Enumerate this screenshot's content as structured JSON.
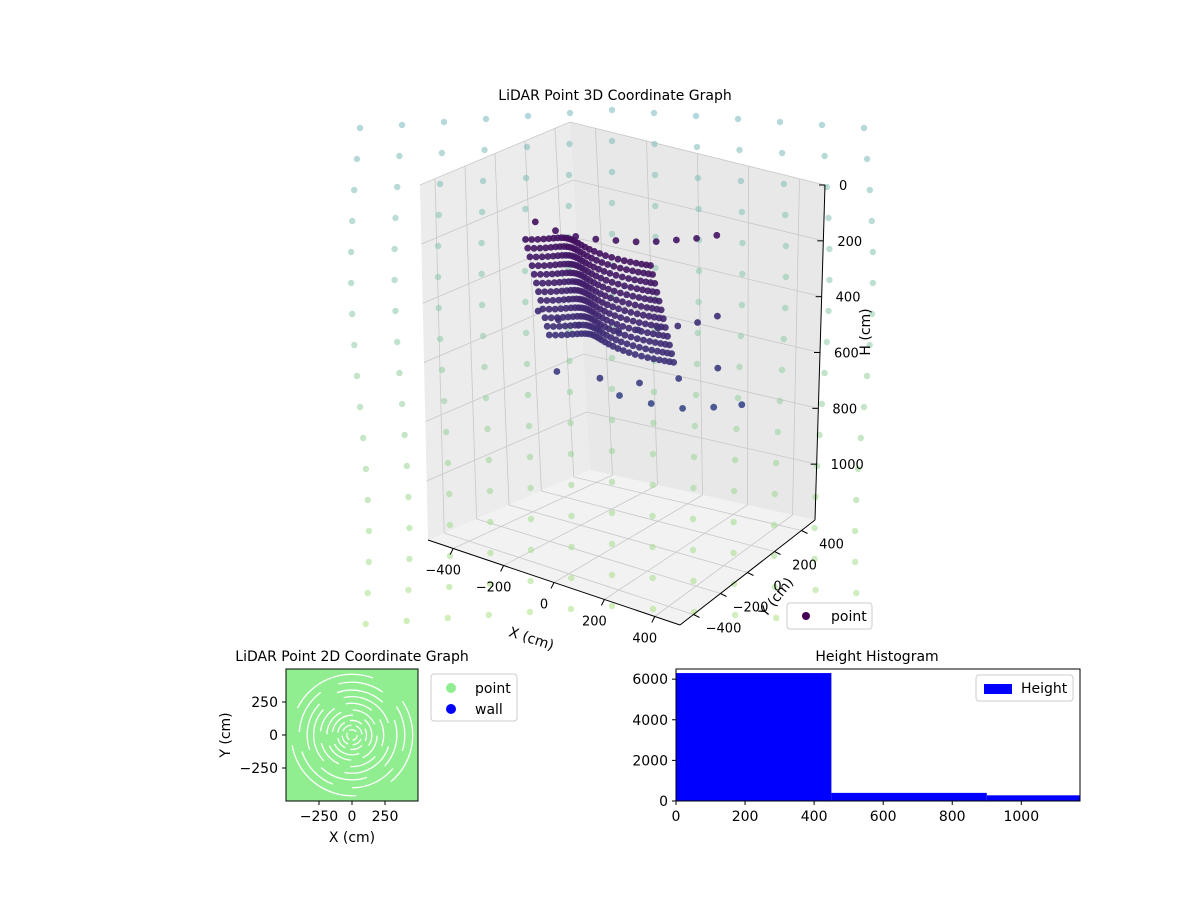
{
  "chart_data": [
    {
      "type": "scatter",
      "title": "LiDAR Point 3D Coordinate Graph",
      "xlabel": "X (cm)",
      "ylabel": "Y (cm)",
      "zlabel": "H (cm)",
      "xlim": [
        -500,
        500
      ],
      "ylim": [
        -500,
        500
      ],
      "zlim": [
        0,
        1200
      ],
      "z_inverted": true,
      "x_ticks": [
        -400,
        -200,
        0,
        200,
        400
      ],
      "y_ticks": [
        -400,
        -200,
        0,
        200,
        400
      ],
      "z_ticks": [
        0,
        200,
        400,
        600,
        800,
        1000
      ],
      "legend": [
        "point"
      ],
      "legend_position": "lower-right",
      "grid": true,
      "colormap": "viridis",
      "series": [
        {
          "name": "point",
          "color": "#440154",
          "points": [
            [
              -250,
              -150,
              150
            ],
            [
              -200,
              -100,
              180
            ],
            [
              -150,
              -50,
              200
            ],
            [
              -100,
              0,
              210
            ],
            [
              -50,
              50,
              215
            ],
            [
              0,
              100,
              220
            ],
            [
              50,
              150,
              220
            ],
            [
              100,
              200,
              215
            ],
            [
              150,
              250,
              210
            ],
            [
              200,
              300,
              200
            ],
            [
              -250,
              -150,
              450
            ],
            [
              -200,
              -100,
              480
            ],
            [
              -150,
              -50,
              500
            ],
            [
              -100,
              0,
              510
            ],
            [
              -50,
              50,
              520
            ],
            [
              0,
              100,
              520
            ],
            [
              50,
              150,
              515
            ],
            [
              100,
              200,
              510
            ],
            [
              150,
              250,
              500
            ],
            [
              200,
              300,
              480
            ],
            [
              -200,
              -120,
              650
            ],
            [
              -100,
              0,
              680
            ],
            [
              0,
              100,
              700
            ],
            [
              100,
              200,
              690
            ],
            [
              200,
              300,
              660
            ],
            [
              -150,
              200,
              800
            ],
            [
              -50,
              250,
              820
            ],
            [
              50,
              300,
              830
            ],
            [
              150,
              350,
              820
            ],
            [
              250,
              380,
              800
            ]
          ]
        },
        {
          "name": "wall",
          "color": "#7ad151",
          "description_points": "ring of low-intensity points around the sensor"
        }
      ]
    },
    {
      "type": "scatter",
      "title": "LiDAR Point 2D Coordinate Graph",
      "xlabel": "X (cm)",
      "ylabel": "Y (cm)",
      "xlim": [
        -500,
        500
      ],
      "ylim": [
        -500,
        500
      ],
      "x_ticks": [
        -250,
        0,
        250
      ],
      "y_ticks": [
        -250,
        0,
        250
      ],
      "legend": [
        "point",
        "wall"
      ],
      "legend_position": "right-outside",
      "series": [
        {
          "name": "point",
          "color": "#90ee90"
        },
        {
          "name": "wall",
          "color": "#0000ff"
        }
      ]
    },
    {
      "type": "bar",
      "title": "Height Histogram",
      "xlabel": "",
      "ylabel": "",
      "xlim": [
        0,
        1170
      ],
      "ylim": [
        0,
        6500
      ],
      "x_ticks": [
        0,
        200,
        400,
        600,
        800,
        1000
      ],
      "y_ticks": [
        0,
        2000,
        4000,
        6000
      ],
      "legend": [
        "Height"
      ],
      "legend_position": "top-right",
      "color": "#0000ff",
      "bins": [
        {
          "from": 0,
          "to": 450,
          "value": 6300
        },
        {
          "from": 450,
          "to": 900,
          "value": 400
        },
        {
          "from": 900,
          "to": 1170,
          "value": 280
        }
      ]
    }
  ]
}
